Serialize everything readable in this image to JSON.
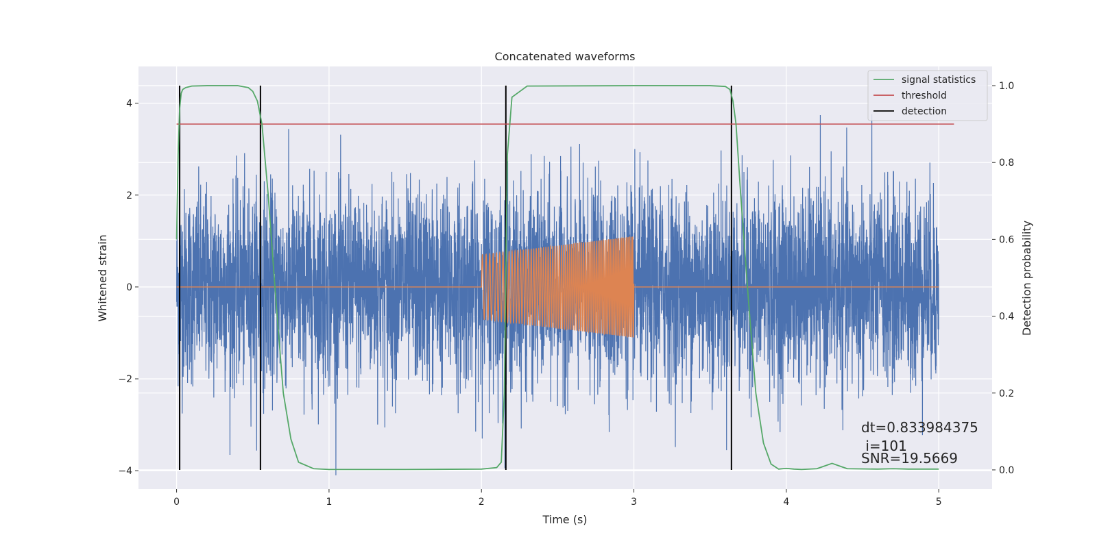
{
  "chart_data": {
    "type": "line",
    "title": "Concatenated waveforms",
    "xlabel": "Time (s)",
    "ylabel_left": "Whitened strain",
    "ylabel_right": "Detection probability",
    "xlim": [
      -0.25,
      5.35
    ],
    "ylim_left": [
      -4.4,
      4.8
    ],
    "ylim_right": [
      -0.05,
      1.05
    ],
    "xticks": [
      0,
      1,
      2,
      3,
      4,
      5
    ],
    "yticks_left": [
      -4,
      -2,
      0,
      2,
      4
    ],
    "yticks_right": [
      0.0,
      0.2,
      0.4,
      0.6,
      0.8,
      1.0
    ],
    "xtick_labels": [
      "0",
      "1",
      "2",
      "3",
      "4",
      "5"
    ],
    "ytick_labels_left": [
      "−4",
      "−2",
      "0",
      "2",
      "4"
    ],
    "ytick_labels_right": [
      "0.0",
      "0.2",
      "0.4",
      "0.6",
      "0.8",
      "1.0"
    ],
    "grid": true,
    "legend_position": "top-right",
    "colors": {
      "background": "#eaeaf2",
      "grid": "#ffffff",
      "strain": "#4c72b0",
      "template": "#dd8452",
      "signal_statistics": "#55a868",
      "threshold": "#c44e52",
      "detection": "#000000"
    },
    "series": [
      {
        "name": "signal statistics",
        "axis": "right",
        "x": [
          0.0,
          0.01,
          0.02,
          0.03,
          0.04,
          0.06,
          0.1,
          0.2,
          0.3,
          0.4,
          0.47,
          0.5,
          0.53,
          0.56,
          0.6,
          0.65,
          0.7,
          0.75,
          0.8,
          0.9,
          1.0,
          1.5,
          2.0,
          2.1,
          2.13,
          2.15,
          2.17,
          2.2,
          2.3,
          3.0,
          3.5,
          3.6,
          3.63,
          3.65,
          3.67,
          3.7,
          3.75,
          3.8,
          3.85,
          3.9,
          3.95,
          4.0,
          4.05,
          4.1,
          4.2,
          4.25,
          4.3,
          4.35,
          4.4,
          4.6,
          4.7,
          4.8,
          5.0
        ],
        "y": [
          0.6,
          0.82,
          0.94,
          0.98,
          0.99,
          0.995,
          0.999,
          1.0,
          1.0,
          1.0,
          0.995,
          0.985,
          0.96,
          0.9,
          0.72,
          0.45,
          0.2,
          0.08,
          0.02,
          0.003,
          0.001,
          0.001,
          0.002,
          0.006,
          0.02,
          0.2,
          0.82,
          0.97,
          0.999,
          1.0,
          1.0,
          0.998,
          0.99,
          0.96,
          0.9,
          0.72,
          0.45,
          0.2,
          0.07,
          0.015,
          0.002,
          0.004,
          0.002,
          0.001,
          0.003,
          0.01,
          0.017,
          0.01,
          0.003,
          0.002,
          0.003,
          0.002,
          0.002
        ]
      },
      {
        "name": "threshold",
        "axis": "right",
        "x": [
          0.0,
          5.1
        ],
        "y": [
          0.9,
          0.9
        ]
      },
      {
        "name": "detection",
        "axis": "right",
        "type": "vlines",
        "x": [
          0.02,
          0.55,
          2.16,
          3.64
        ],
        "ymin": 0.0,
        "ymax": 1.0
      },
      {
        "axis": "left",
        "type": "noise",
        "x_range": [
          0.0,
          5.0
        ],
        "std": 1.0,
        "clip": [
          -4.1,
          4.4
        ]
      },
      {
        "axis": "left",
        "type": "chirp",
        "x_range": [
          0.0,
          5.0
        ],
        "active_range": [
          2.0,
          3.0
        ],
        "amplitude_start": 0.7,
        "amplitude_end": 1.1
      }
    ],
    "annotations": {
      "dt": "dt=0.833984375",
      "i": " i=101",
      "snr": "SNR=19.5669"
    }
  }
}
